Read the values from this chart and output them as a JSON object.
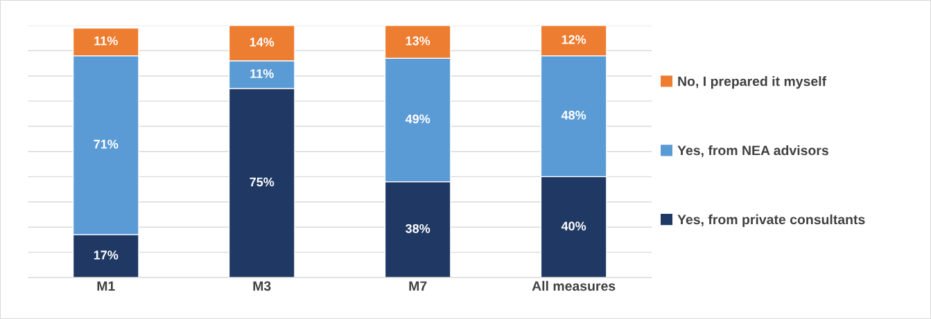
{
  "chart_data": {
    "type": "bar",
    "stacked": true,
    "categories": [
      "M1",
      "M3",
      "M7",
      "All measures"
    ],
    "series": [
      {
        "name": "Yes, from private consultants",
        "color": "#203864",
        "values": [
          17,
          75,
          38,
          40
        ],
        "value_labels": [
          "17%",
          "75%",
          "38%",
          "40%"
        ]
      },
      {
        "name": "Yes, from NEA advisors",
        "color": "#5b9bd5",
        "values": [
          71,
          11,
          49,
          48
        ],
        "value_labels": [
          "71%",
          "11%",
          "49%",
          "48%"
        ]
      },
      {
        "name": "No, I prepared it myself",
        "color": "#ed7d31",
        "values": [
          11,
          14,
          13,
          12
        ],
        "value_labels": [
          "11%",
          "14%",
          "13%",
          "12%"
        ]
      }
    ],
    "tick_labels": "x",
    "grid": "y",
    "legend": "right"
  }
}
